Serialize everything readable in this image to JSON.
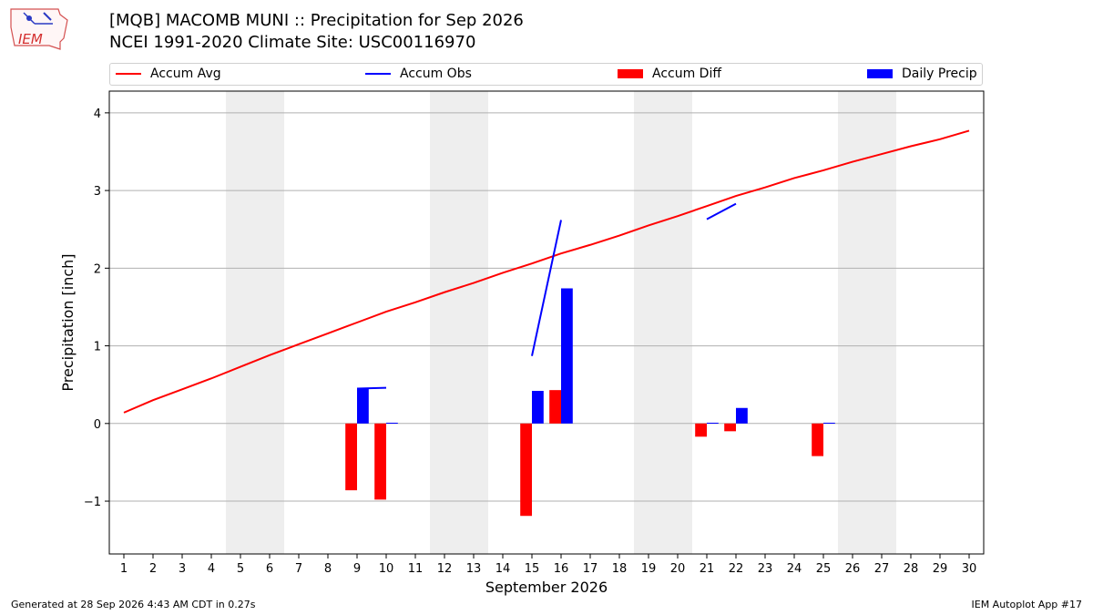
{
  "header": {
    "logo_text": "IEM",
    "title_line1": "[MQB] MACOMB MUNI :: Precipitation for Sep 2026",
    "title_line2": "NCEI 1991-2020 Climate Site: USC00116970"
  },
  "footer": {
    "generated": "Generated at 28 Sep 2026 4:43 AM CDT in 0.27s",
    "app": "IEM Autoplot App #17"
  },
  "colors": {
    "avg": "#ff0000",
    "obs": "#0000ff",
    "diff": "#ff0000",
    "daily": "#0000ff",
    "weekend": "#eeeeee",
    "grid": "#b0b0b0"
  },
  "chart_data": {
    "type": "bar",
    "xlabel": "September 2026",
    "ylabel": "Precipitation [inch]",
    "xlim": [
      0.5,
      30.5
    ],
    "ylim": [
      -1.68,
      4.28
    ],
    "yticks": [
      -1,
      0,
      1,
      2,
      3,
      4
    ],
    "ytick_labels": [
      "−1",
      "0",
      "1",
      "2",
      "3",
      "4"
    ],
    "x": [
      1,
      2,
      3,
      4,
      5,
      6,
      7,
      8,
      9,
      10,
      11,
      12,
      13,
      14,
      15,
      16,
      17,
      18,
      19,
      20,
      21,
      22,
      23,
      24,
      25,
      26,
      27,
      28,
      29,
      30
    ],
    "legend": {
      "placement": "top",
      "entries": [
        "Accum Avg",
        "Accum Obs",
        "Accum Diff",
        "Daily Precip"
      ]
    },
    "weekend_spans": [
      [
        4.5,
        6.5
      ],
      [
        11.5,
        13.5
      ],
      [
        18.5,
        20.5
      ],
      [
        25.5,
        27.5
      ]
    ],
    "grid": "y",
    "accum_avg": [
      0.14,
      0.3,
      0.44,
      0.58,
      0.73,
      0.88,
      1.02,
      1.16,
      1.3,
      1.44,
      1.56,
      1.69,
      1.81,
      1.94,
      2.06,
      2.19,
      2.3,
      2.42,
      2.55,
      2.67,
      2.8,
      2.93,
      3.04,
      3.16,
      3.26,
      3.37,
      3.47,
      3.57,
      3.66,
      3.77
    ],
    "accum_obs": [
      {
        "x": [
          9,
          10
        ],
        "y": [
          0.45,
          0.46
        ]
      },
      {
        "x": [
          15,
          16
        ],
        "y": [
          0.87,
          2.62
        ]
      },
      {
        "x": [
          21,
          22
        ],
        "y": [
          2.63,
          2.83
        ]
      }
    ],
    "accum_diff": [
      {
        "x": 9,
        "value": -0.86
      },
      {
        "x": 10,
        "value": -0.98
      },
      {
        "x": 15,
        "value": -1.19
      },
      {
        "x": 16,
        "value": 0.43
      },
      {
        "x": 21,
        "value": -0.17
      },
      {
        "x": 22,
        "value": -0.1
      },
      {
        "x": 25,
        "value": -0.42
      }
    ],
    "daily_precip": [
      {
        "x": 9,
        "value": 0.45
      },
      {
        "x": 10,
        "value": 0.01
      },
      {
        "x": 15,
        "value": 0.42
      },
      {
        "x": 16,
        "value": 1.74
      },
      {
        "x": 21,
        "value": 0.01
      },
      {
        "x": 22,
        "value": 0.2
      },
      {
        "x": 25,
        "value": 0.01
      }
    ]
  }
}
